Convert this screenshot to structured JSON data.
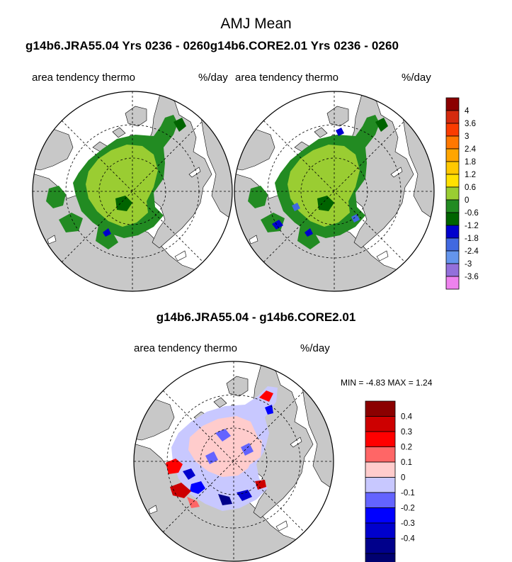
{
  "figure": {
    "title": "AMJ Mean",
    "top_header": "g14b6.JRA55.04  Yrs 0236 - 0260g14b6.CORE2.01  Yrs 0236 - 0260",
    "diff_title": "g14b6.JRA55.04 - g14b6.CORE2.01"
  },
  "panels": [
    {
      "variable": "area tendency thermo",
      "units": "%/day"
    },
    {
      "variable": "area tendency thermo",
      "units": "%/day"
    },
    {
      "variable": "area tendency thermo",
      "units": "%/day"
    }
  ],
  "stats": {
    "text": "MIN =  -4.83 MAX =   1.24"
  },
  "colorbar_top": {
    "colors": [
      "#8b0000",
      "#d42a0e",
      "#fa3c00",
      "#ff7800",
      "#ffa500",
      "#ffc800",
      "#ffe100",
      "#9acd32",
      "#228b22",
      "#006400",
      "#0000cd",
      "#4169e1",
      "#6495ed",
      "#9370db",
      "#ee82ee"
    ],
    "labels": [
      "4",
      "3.6",
      "3",
      "2.4",
      "1.8",
      "1.2",
      "0.6",
      "0",
      "-0.6",
      "-1.2",
      "-1.8",
      "-2.4",
      "-3",
      "-3.6"
    ]
  },
  "colorbar_diff": {
    "colors": [
      "#8b0000",
      "#cd0000",
      "#ff0000",
      "#ff6666",
      "#ffcccc",
      "#c8c8ff",
      "#6464ff",
      "#0000ff",
      "#0000cd",
      "#00008b",
      "#000070"
    ],
    "labels": [
      "0.4",
      "0.3",
      "0.2",
      "0.1",
      "0",
      "-0.1",
      "-0.2",
      "-0.3",
      "-0.4"
    ]
  },
  "map_colors": {
    "land": "#c8c8c8",
    "ocean": "#ffffff",
    "ice_center": "#9acd32",
    "ice_edge": "#228b22",
    "ice_edge_dark": "#006400",
    "diff_pos": "#ffcccc",
    "diff_neg": "#c8c8ff"
  }
}
